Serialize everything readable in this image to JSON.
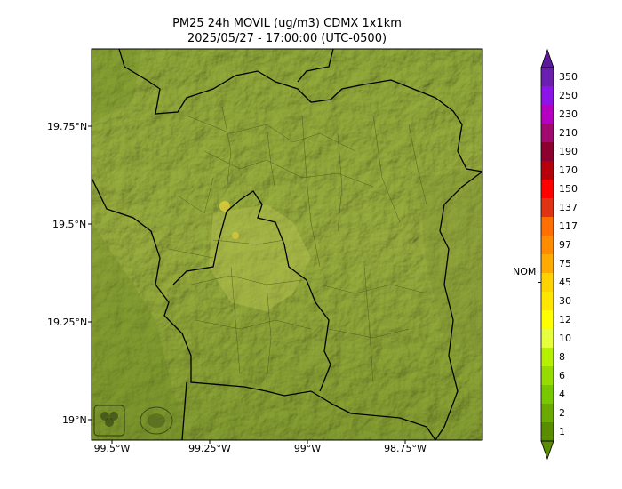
{
  "title_line1": "PM25 24h MOVIL (ug/m3) CDMX 1x1km",
  "title_line2": "2025/05/27 - 17:00:00 (UTC-0500)",
  "lat_ticks": [
    "19.75°N",
    "19.5°N",
    "19.25°N",
    "19°N"
  ],
  "lon_ticks": [
    "99.5°W",
    "99.25°W",
    "99°W",
    "98.75°W"
  ],
  "colorbar": {
    "labels": [
      "350",
      "250",
      "230",
      "210",
      "190",
      "170",
      "150",
      "137",
      "117",
      "97",
      "75",
      "45",
      "30",
      "12",
      "10",
      "8",
      "6",
      "4",
      "2",
      "1"
    ],
    "colors": [
      "#6a1fb0",
      "#8d14e8",
      "#b400c0",
      "#a00a6e",
      "#8c0030",
      "#b8000c",
      "#ff0000",
      "#e03214",
      "#ff6e00",
      "#ff8c00",
      "#ffaa00",
      "#ffd200",
      "#ffe600",
      "#ffff00",
      "#e6ff3c",
      "#b4f000",
      "#96dc00",
      "#78c800",
      "#6aaa00",
      "#5a8c00"
    ],
    "nom_label": "NOM",
    "nom_value": 45
  },
  "logos": [
    "sedema-logo",
    "gobierno-cdmx-logo"
  ]
}
